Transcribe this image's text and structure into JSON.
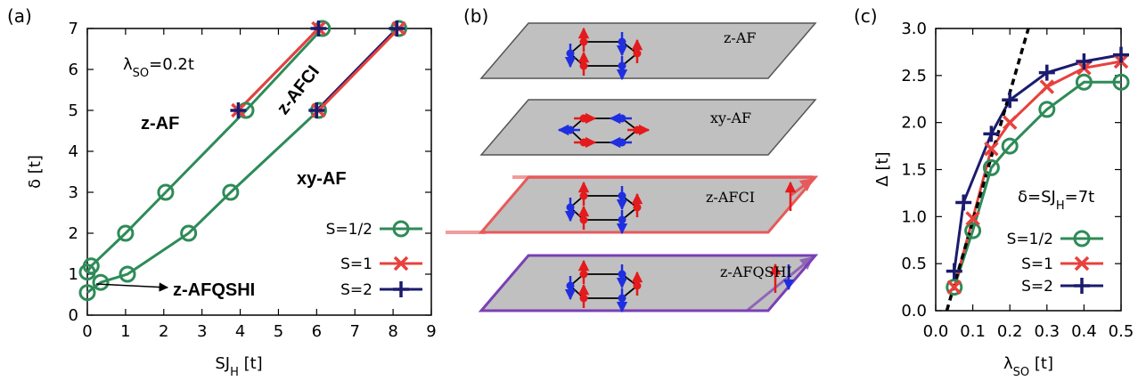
{
  "panels": {
    "a": "(a)",
    "b": "(b)",
    "c": "(c)"
  },
  "colors": {
    "s_half": "#2e8b57",
    "s_one": "#e8413c",
    "s_two": "#1b1b6e",
    "spin_up": "#e41a1c",
    "spin_down": "#1f2ee0",
    "plane_fill": "#c0c0c0",
    "afci_edge": "#e85a5a",
    "afqshi_edge": "#7a3fb5"
  },
  "chart_data": [
    {
      "type": "line",
      "panel": "a",
      "xlabel_main": "SJ",
      "xlabel_sub": "H",
      "xlabel_unit": " [t]",
      "ylabel": "δ [t]",
      "xlim": [
        0,
        9
      ],
      "ylim": [
        0,
        7
      ],
      "xticks": [
        0,
        1,
        2,
        3,
        4,
        5,
        6,
        7,
        8,
        9
      ],
      "yticks": [
        0,
        1,
        2,
        3,
        4,
        5,
        6,
        7
      ],
      "annotation": {
        "main": "λ",
        "sub": "SO",
        "rest": "=0.2t"
      },
      "region_labels": [
        "z-AF",
        "z-AFCI",
        "xy-AF",
        "z-AFQSHI"
      ],
      "series": [
        {
          "name": "S=1/2",
          "segments": [
            [
              [
                0.0,
                1.05
              ],
              [
                0.1,
                1.2
              ],
              [
                1.0,
                2.0
              ],
              [
                2.05,
                3.0
              ],
              [
                4.15,
                5.0
              ],
              [
                6.15,
                7.0
              ]
            ],
            [
              [
                0.0,
                0.55
              ],
              [
                0.35,
                0.8
              ],
              [
                1.05,
                1.0
              ],
              [
                2.65,
                2.0
              ],
              [
                3.75,
                3.0
              ],
              [
                6.05,
                5.0
              ],
              [
                8.15,
                7.0
              ]
            ]
          ]
        },
        {
          "name": "S=1",
          "segments": [
            [
              [
                3.95,
                5.0
              ],
              [
                6.05,
                7.0
              ]
            ],
            [
              [
                6.05,
                5.0
              ],
              [
                8.15,
                7.0
              ]
            ]
          ]
        },
        {
          "name": "S=2",
          "segments": [
            [
              [
                3.95,
                5.0
              ],
              [
                6.05,
                7.0
              ]
            ],
            [
              [
                6.0,
                5.0
              ],
              [
                8.1,
                7.0
              ]
            ]
          ]
        }
      ]
    },
    {
      "type": "line",
      "panel": "c",
      "xlabel_main": "λ",
      "xlabel_sub": "SO",
      "xlabel_unit": " [t]",
      "ylabel": "Δ [t]",
      "xlim": [
        0,
        0.5
      ],
      "ylim": [
        0,
        3
      ],
      "xticks": [
        0.0,
        0.1,
        0.2,
        0.3,
        0.4,
        0.5
      ],
      "yticks": [
        0.0,
        0.5,
        1.0,
        1.5,
        2.0,
        2.5,
        3.0
      ],
      "annotation": {
        "main": "δ=SJ",
        "sub": "H",
        "rest": "=7t"
      },
      "fit_line": [
        [
          0.03,
          0.0
        ],
        [
          0.25,
          3.0
        ]
      ],
      "series": [
        {
          "name": "S=1/2",
          "x": [
            0.05,
            0.1,
            0.15,
            0.2,
            0.3,
            0.4,
            0.5
          ],
          "y": [
            0.25,
            0.85,
            1.52,
            1.75,
            2.14,
            2.43,
            2.43
          ]
        },
        {
          "name": "S=1",
          "x": [
            0.05,
            0.1,
            0.15,
            0.2,
            0.3,
            0.4,
            0.5
          ],
          "y": [
            0.25,
            0.98,
            1.72,
            2.0,
            2.38,
            2.58,
            2.65
          ]
        },
        {
          "name": "S=2",
          "x": [
            0.05,
            0.075,
            0.15,
            0.2,
            0.3,
            0.4,
            0.5
          ],
          "y": [
            0.42,
            1.15,
            1.88,
            2.24,
            2.53,
            2.65,
            2.72
          ]
        }
      ]
    }
  ],
  "planes": [
    {
      "label": "z-AF"
    },
    {
      "label": "xy-AF"
    },
    {
      "label": "z-AFCI"
    },
    {
      "label": "z-AFQSHI"
    }
  ]
}
